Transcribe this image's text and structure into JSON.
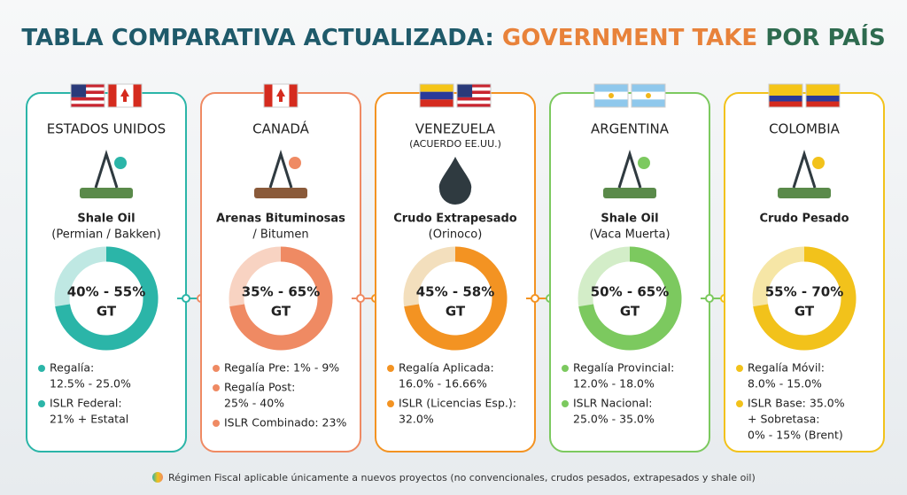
{
  "title": {
    "part1": "TABLA COMPARATIVA ACTUALIZADA:",
    "part2": "GOVERNMENT TAKE",
    "part3": "POR PAÍS"
  },
  "cards": [
    {
      "country": "ESTADOS UNIDOS",
      "resource": "Shale Oil",
      "resource_detail": "(Permian / Bakken)",
      "gt_range": "40% - 55%",
      "gt_label": "GT",
      "bullets": [
        [
          "Regalía:",
          "12.5% - 25.0%"
        ],
        [
          "ISLR Federal:",
          "21% + Estatal"
        ]
      ]
    },
    {
      "country": "CANADÁ",
      "resource": "Arenas Bituminosas",
      "resource_detail": "/ Bitumen",
      "gt_range": "35% - 65%",
      "gt_label": "GT",
      "bullets": [
        [
          "Regalía Pre: 1% - 9%"
        ],
        [
          "Regalía Post:",
          "25% - 40%"
        ],
        [
          "ISLR Combinado: 23%"
        ]
      ]
    },
    {
      "country": "VENEZUELA",
      "country_note": "(ACUERDO EE.UU.)",
      "resource": "Crudo Extrapesado",
      "resource_detail": "(Orinoco)",
      "gt_range": "45% - 58%",
      "gt_label": "GT",
      "bullets": [
        [
          "Regalía Aplicada:",
          "16.0% - 16.66%"
        ],
        [
          "ISLR (Licencias Esp.):",
          "32.0%"
        ]
      ]
    },
    {
      "country": "ARGENTINA",
      "resource": "Shale Oil",
      "resource_detail": "(Vaca Muerta)",
      "gt_range": "50% - 65%",
      "gt_label": "GT",
      "bullets": [
        [
          "Regalía Provincial:",
          "12.0% - 18.0%"
        ],
        [
          "ISLR Nacional:",
          "25.0% - 35.0%"
        ]
      ]
    },
    {
      "country": "COLOMBIA",
      "resource": "Crudo Pesado",
      "gt_range": "55% - 70%",
      "gt_label": "GT",
      "bullets": [
        [
          "Regalía Móvil:",
          "8.0% - 15.0%"
        ],
        [
          "ISLR Base: 35.0%",
          "+ Sobretasa:",
          "0% - 15% (Brent)"
        ]
      ]
    }
  ],
  "footer": "Régimen Fiscal aplicable únicamente a nuevos proyectos (no convencionales, crudos pesados, extrapesados y shale oil)"
}
